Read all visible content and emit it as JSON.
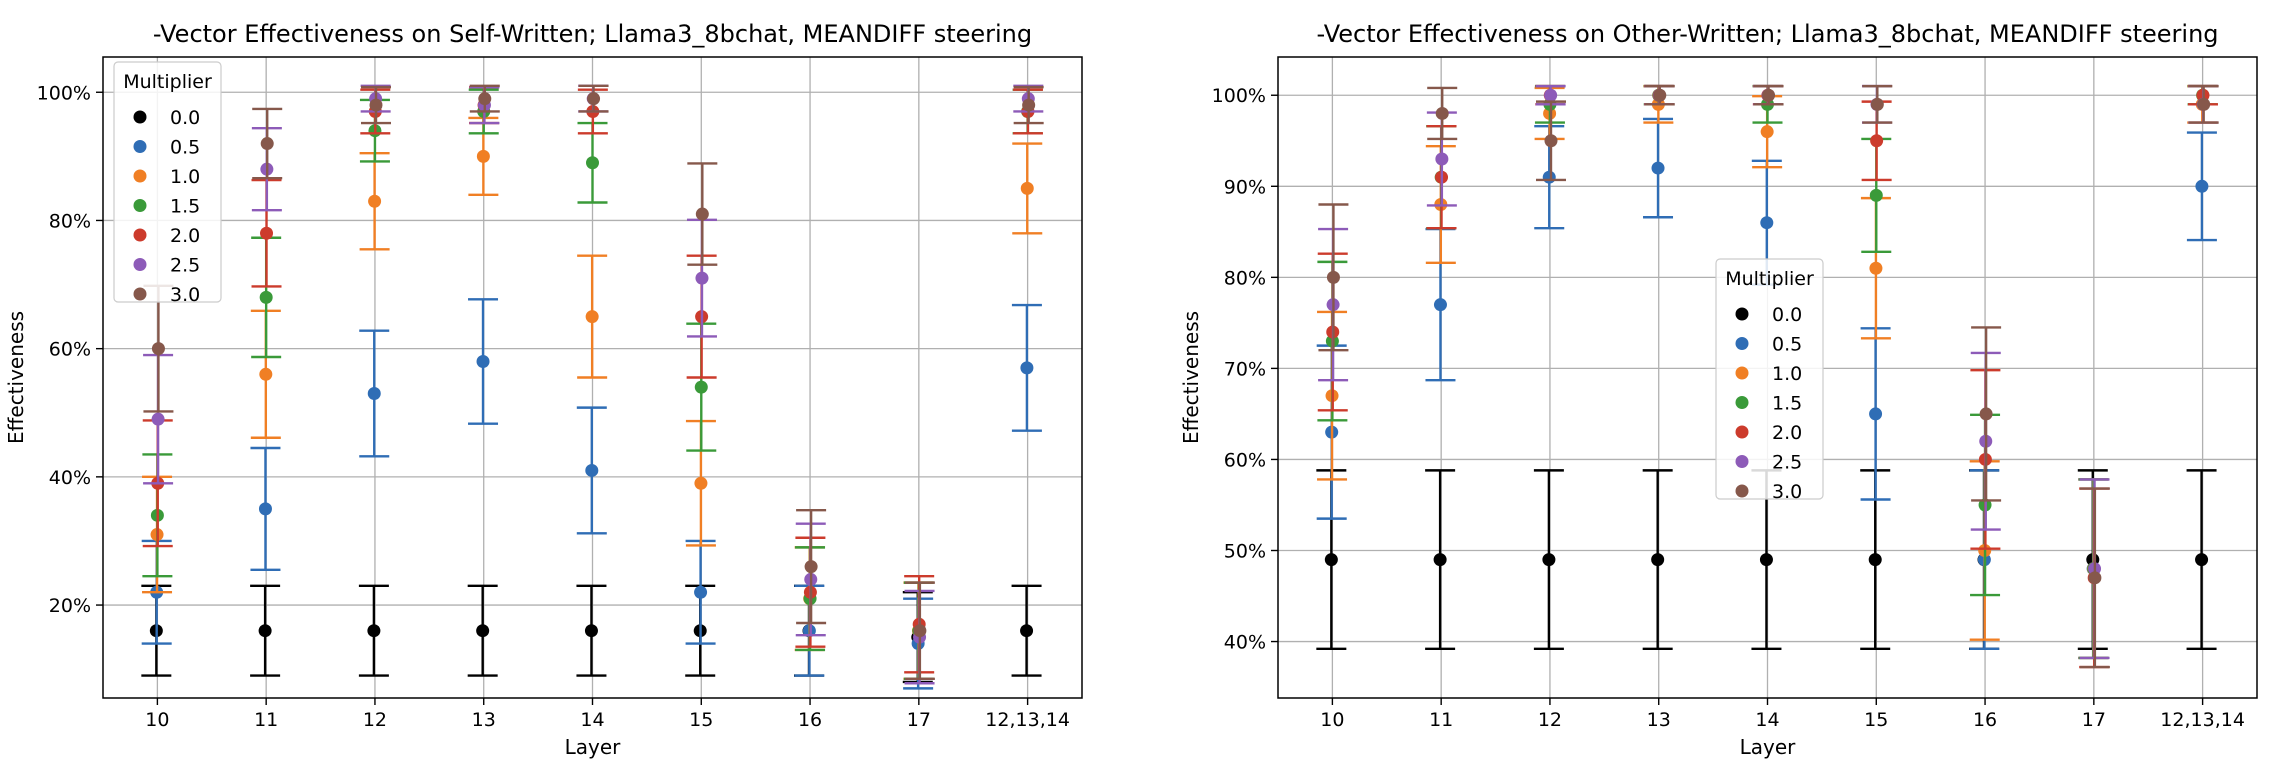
{
  "chart_data": [
    {
      "type": "scatter",
      "title": "-Vector Effectiveness on Self-Written; Llama3_8bchat, MEANDIFF steering",
      "xlabel": "Layer",
      "ylabel": "Effectiveness",
      "categories": [
        "10",
        "11",
        "12",
        "13",
        "14",
        "15",
        "16",
        "17",
        "12,13,14"
      ],
      "ylim": [
        5.5,
        105.5
      ],
      "yticks": [
        20,
        40,
        60,
        80,
        100
      ],
      "ytick_labels": [
        "20%",
        "40%",
        "60%",
        "80%",
        "100%"
      ],
      "grid": true,
      "legend": {
        "title": "Multiplier",
        "placement": "upper-left"
      },
      "series": [
        {
          "name": "0.0",
          "color": "#000000",
          "values": [
            16,
            16,
            16,
            16,
            16,
            16,
            16,
            15,
            16
          ],
          "err": [
            7,
            7,
            7,
            7,
            7,
            7,
            7,
            7,
            7
          ]
        },
        {
          "name": "0.5",
          "color": "#2f6db5",
          "values": [
            22,
            35,
            53,
            58,
            41,
            22,
            16,
            14,
            57
          ],
          "err": [
            8,
            9.5,
            9.8,
            9.7,
            9.8,
            8,
            7,
            7,
            9.8
          ]
        },
        {
          "name": "1.0",
          "color": "#f07f24",
          "values": [
            31,
            56,
            83,
            90,
            65,
            39,
            21,
            16,
            85
          ],
          "err": [
            9,
            9.9,
            7.5,
            6,
            9.5,
            9.7,
            8,
            7.5,
            7
          ]
        },
        {
          "name": "1.5",
          "color": "#3a9a39",
          "values": [
            34,
            68,
            94,
            97,
            89,
            54,
            21,
            16,
            97
          ],
          "err": [
            9.5,
            9.3,
            4.8,
            3.4,
            6.2,
            9.9,
            8,
            7.5,
            3.4
          ]
        },
        {
          "name": "2.0",
          "color": "#cc3b2c",
          "values": [
            39,
            78,
            97,
            98,
            97,
            65,
            22,
            17,
            97
          ],
          "err": [
            9.8,
            8.3,
            3.4,
            2.8,
            3.4,
            9.5,
            8.5,
            7.5,
            3.4
          ]
        },
        {
          "name": "2.5",
          "color": "#8d5bb8",
          "values": [
            49,
            88,
            99,
            98,
            99,
            71,
            24,
            15,
            99
          ],
          "err": [
            10,
            6.4,
            2,
            2.8,
            2,
            9.1,
            8.7,
            7.2,
            2
          ]
        },
        {
          "name": "3.0",
          "color": "#86584b",
          "values": [
            60,
            92,
            98,
            99,
            99,
            81,
            26,
            16,
            98
          ],
          "err": [
            9.8,
            5.4,
            2.8,
            2,
            2,
            7.9,
            8.8,
            7.5,
            2.8
          ]
        }
      ]
    },
    {
      "type": "scatter",
      "title": "-Vector Effectiveness on Other-Written; Llama3_8bchat, MEANDIFF steering",
      "xlabel": "Layer",
      "ylabel": "Effectiveness",
      "categories": [
        "10",
        "11",
        "12",
        "13",
        "14",
        "15",
        "16",
        "17",
        "12,13,14"
      ],
      "ylim": [
        33.8,
        104.2
      ],
      "yticks": [
        40,
        50,
        60,
        70,
        80,
        90,
        100
      ],
      "ytick_labels": [
        "40%",
        "50%",
        "60%",
        "70%",
        "80%",
        "90%",
        "100%"
      ],
      "grid": true,
      "legend": {
        "title": "Multiplier",
        "placement": "center"
      },
      "series": [
        {
          "name": "0.0",
          "color": "#000000",
          "values": [
            49,
            49,
            49,
            49,
            49,
            49,
            49,
            49,
            49
          ],
          "err": [
            9.8,
            9.8,
            9.8,
            9.8,
            9.8,
            9.8,
            9.8,
            9.8,
            9.8
          ]
        },
        {
          "name": "0.5",
          "color": "#2f6db5",
          "values": [
            63,
            77,
            91,
            92,
            86,
            65,
            49,
            48,
            90
          ],
          "err": [
            9.5,
            8.3,
            5.6,
            5.4,
            6.8,
            9.4,
            9.8,
            9.8,
            5.9
          ]
        },
        {
          "name": "1.0",
          "color": "#f07f24",
          "values": [
            67,
            88,
            98,
            99,
            96,
            81,
            50,
            48,
            99
          ],
          "err": [
            9.2,
            6.4,
            2.8,
            2,
            3.9,
            7.7,
            9.8,
            9.8,
            2
          ]
        },
        {
          "name": "1.5",
          "color": "#3a9a39",
          "values": [
            73,
            91,
            99,
            100,
            99,
            89,
            55,
            48,
            100
          ],
          "err": [
            8.7,
            5.6,
            2,
            1,
            2,
            6.2,
            9.9,
            9.8,
            1
          ]
        },
        {
          "name": "2.0",
          "color": "#cc3b2c",
          "values": [
            74,
            91,
            100,
            100,
            100,
            95,
            60,
            47,
            100
          ],
          "err": [
            8.6,
            5.6,
            1,
            1,
            1,
            4.3,
            9.8,
            9.8,
            1
          ]
        },
        {
          "name": "2.5",
          "color": "#8d5bb8",
          "values": [
            77,
            93,
            100,
            100,
            100,
            99,
            62,
            48,
            99
          ],
          "err": [
            8.3,
            5.1,
            1,
            1,
            1,
            2,
            9.7,
            9.8,
            2
          ]
        },
        {
          "name": "3.0",
          "color": "#86584b",
          "values": [
            80,
            98,
            95,
            100,
            100,
            99,
            65,
            47,
            99
          ],
          "err": [
            8,
            2.8,
            4.3,
            1,
            1,
            2,
            9.5,
            9.8,
            2
          ]
        }
      ]
    }
  ]
}
